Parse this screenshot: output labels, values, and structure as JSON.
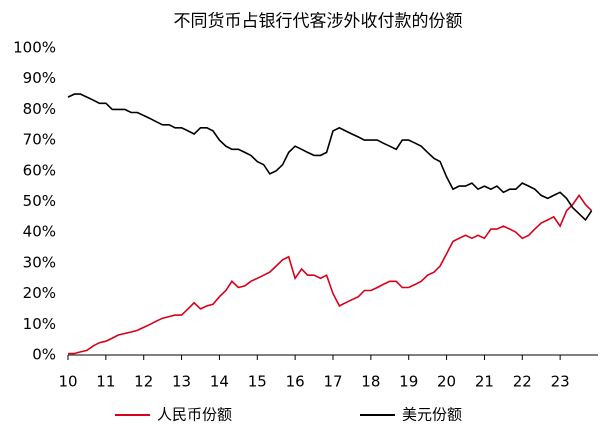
{
  "chart_data": {
    "type": "line",
    "title": "不同货币占银行代客涉外收付款的份额",
    "x": [
      10,
      10.17,
      10.33,
      10.5,
      10.67,
      10.83,
      11,
      11.17,
      11.33,
      11.5,
      11.67,
      11.83,
      12,
      12.17,
      12.33,
      12.5,
      12.67,
      12.83,
      13,
      13.17,
      13.33,
      13.5,
      13.67,
      13.83,
      14,
      14.17,
      14.33,
      14.5,
      14.67,
      14.83,
      15,
      15.17,
      15.33,
      15.5,
      15.67,
      15.83,
      16,
      16.17,
      16.33,
      16.5,
      16.67,
      16.83,
      17,
      17.17,
      17.33,
      17.5,
      17.67,
      17.83,
      18,
      18.17,
      18.33,
      18.5,
      18.67,
      18.83,
      19,
      19.17,
      19.33,
      19.5,
      19.67,
      19.83,
      20,
      20.17,
      20.33,
      20.5,
      20.67,
      20.83,
      21,
      21.17,
      21.33,
      21.5,
      21.67,
      21.83,
      22,
      22.17,
      22.33,
      22.5,
      22.67,
      22.83,
      23,
      23.17,
      23.33,
      23.5,
      23.67,
      23.83
    ],
    "series": [
      {
        "name": "人民币份额",
        "color": "#d9001b",
        "values": [
          0.5,
          0.5,
          1,
          1.5,
          3,
          4,
          4.5,
          5.5,
          6.5,
          7,
          7.5,
          8,
          9,
          10,
          11,
          12,
          12.5,
          13,
          13,
          15,
          17,
          15,
          16,
          16.5,
          19,
          21,
          24,
          22,
          22.5,
          24,
          25,
          26,
          27,
          29,
          31,
          32,
          25,
          28,
          26,
          26,
          25,
          26,
          20,
          16,
          17,
          18,
          19,
          21,
          21,
          22,
          23,
          24,
          24,
          22,
          22,
          23,
          24,
          26,
          27,
          29,
          33,
          37,
          38,
          39,
          38,
          39,
          38,
          41,
          41,
          42,
          41,
          40,
          38,
          39,
          41,
          43,
          44,
          45,
          42,
          47,
          49,
          52,
          49,
          47
        ]
      },
      {
        "name": "美元份额",
        "color": "#000000",
        "values": [
          84,
          85,
          85,
          84,
          83,
          82,
          82,
          80,
          80,
          80,
          79,
          79,
          78,
          77,
          76,
          75,
          75,
          74,
          74,
          73,
          72,
          74,
          74,
          73,
          70,
          68,
          67,
          67,
          66,
          65,
          63,
          62,
          59,
          60,
          62,
          66,
          68,
          67,
          66,
          65,
          65,
          66,
          73,
          74,
          73,
          72,
          71,
          70,
          70,
          70,
          69,
          68,
          67,
          70,
          70,
          69,
          68,
          66,
          64,
          63,
          58,
          54,
          55,
          55,
          56,
          54,
          55,
          54,
          55,
          53,
          54,
          54,
          56,
          55,
          54,
          52,
          51,
          52,
          53,
          51,
          48,
          46,
          44,
          47
        ]
      }
    ],
    "xlim": [
      10,
      24
    ],
    "xticks": [
      10,
      11,
      12,
      13,
      14,
      15,
      16,
      17,
      18,
      19,
      20,
      21,
      22,
      23
    ],
    "ylim": [
      0,
      100
    ],
    "yticks": [
      {
        "value": 0,
        "label": "0%"
      },
      {
        "value": 10,
        "label": "10%"
      },
      {
        "value": 20,
        "label": "20%"
      },
      {
        "value": 30,
        "label": "30%"
      },
      {
        "value": 40,
        "label": "40%"
      },
      {
        "value": 50,
        "label": "50%"
      },
      {
        "value": 60,
        "label": "60%"
      },
      {
        "value": 70,
        "label": "70%"
      },
      {
        "value": 80,
        "label": "80%"
      },
      {
        "value": 90,
        "label": "90%"
      },
      {
        "value": 100,
        "label": "100%"
      }
    ],
    "legend": "bottom"
  }
}
